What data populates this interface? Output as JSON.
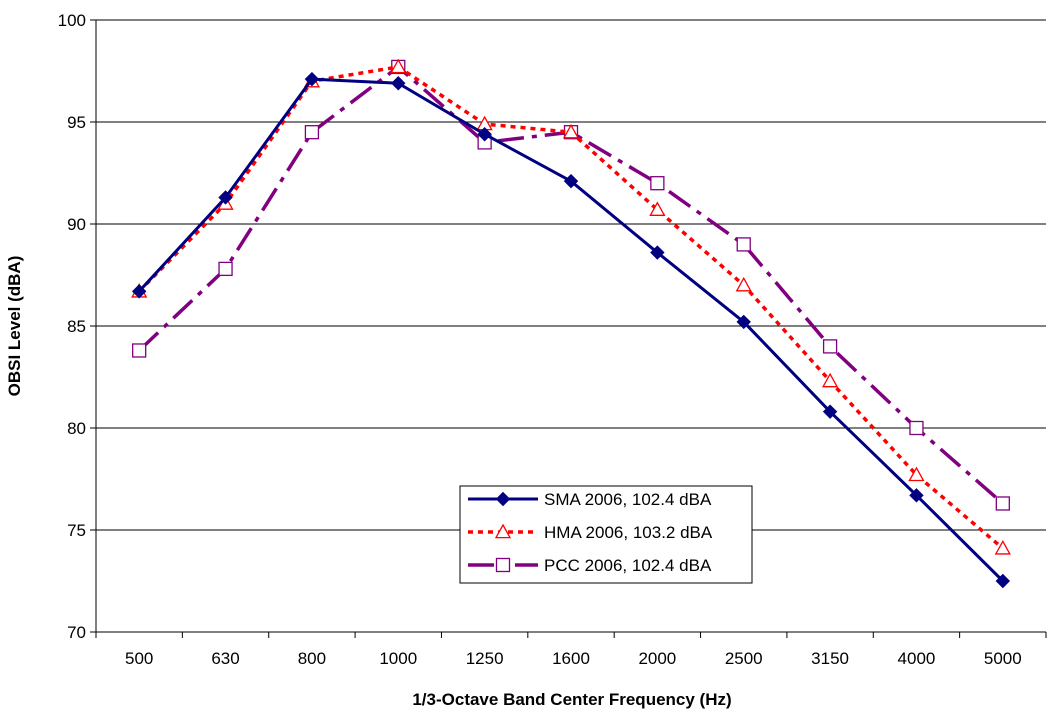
{
  "chart_data": {
    "type": "line",
    "title": "",
    "xlabel": "1/3-Octave Band Center Frequency (Hz)",
    "ylabel": "OBSI Level (dBA)",
    "categories": [
      "500",
      "630",
      "800",
      "1000",
      "1250",
      "1600",
      "2000",
      "2500",
      "3150",
      "4000",
      "5000"
    ],
    "ylim": [
      70,
      100
    ],
    "yticks": [
      70,
      75,
      80,
      85,
      90,
      95,
      100
    ],
    "grid": "horizontal",
    "legend_position": "bottom-center",
    "series": [
      {
        "name": "SMA 2006, 102.4 dBA",
        "color": "#000080",
        "line_style": "solid",
        "marker": "diamond",
        "values": [
          86.7,
          91.3,
          97.1,
          96.9,
          94.4,
          92.1,
          88.6,
          85.2,
          80.8,
          76.7,
          72.5
        ]
      },
      {
        "name": "HMA 2006, 103.2 dBA",
        "color": "#ff0000",
        "line_style": "dotted",
        "marker": "triangle",
        "values": [
          86.7,
          91.0,
          97.0,
          97.7,
          94.9,
          94.5,
          90.7,
          87.0,
          82.3,
          77.7,
          74.1
        ]
      },
      {
        "name": "PCC 2006, 102.4 dBA",
        "color": "#800080",
        "line_style": "dash-dot",
        "marker": "square",
        "values": [
          83.8,
          87.8,
          94.5,
          97.7,
          94.0,
          94.5,
          92.0,
          89.0,
          84.0,
          80.0,
          76.3
        ]
      }
    ]
  }
}
